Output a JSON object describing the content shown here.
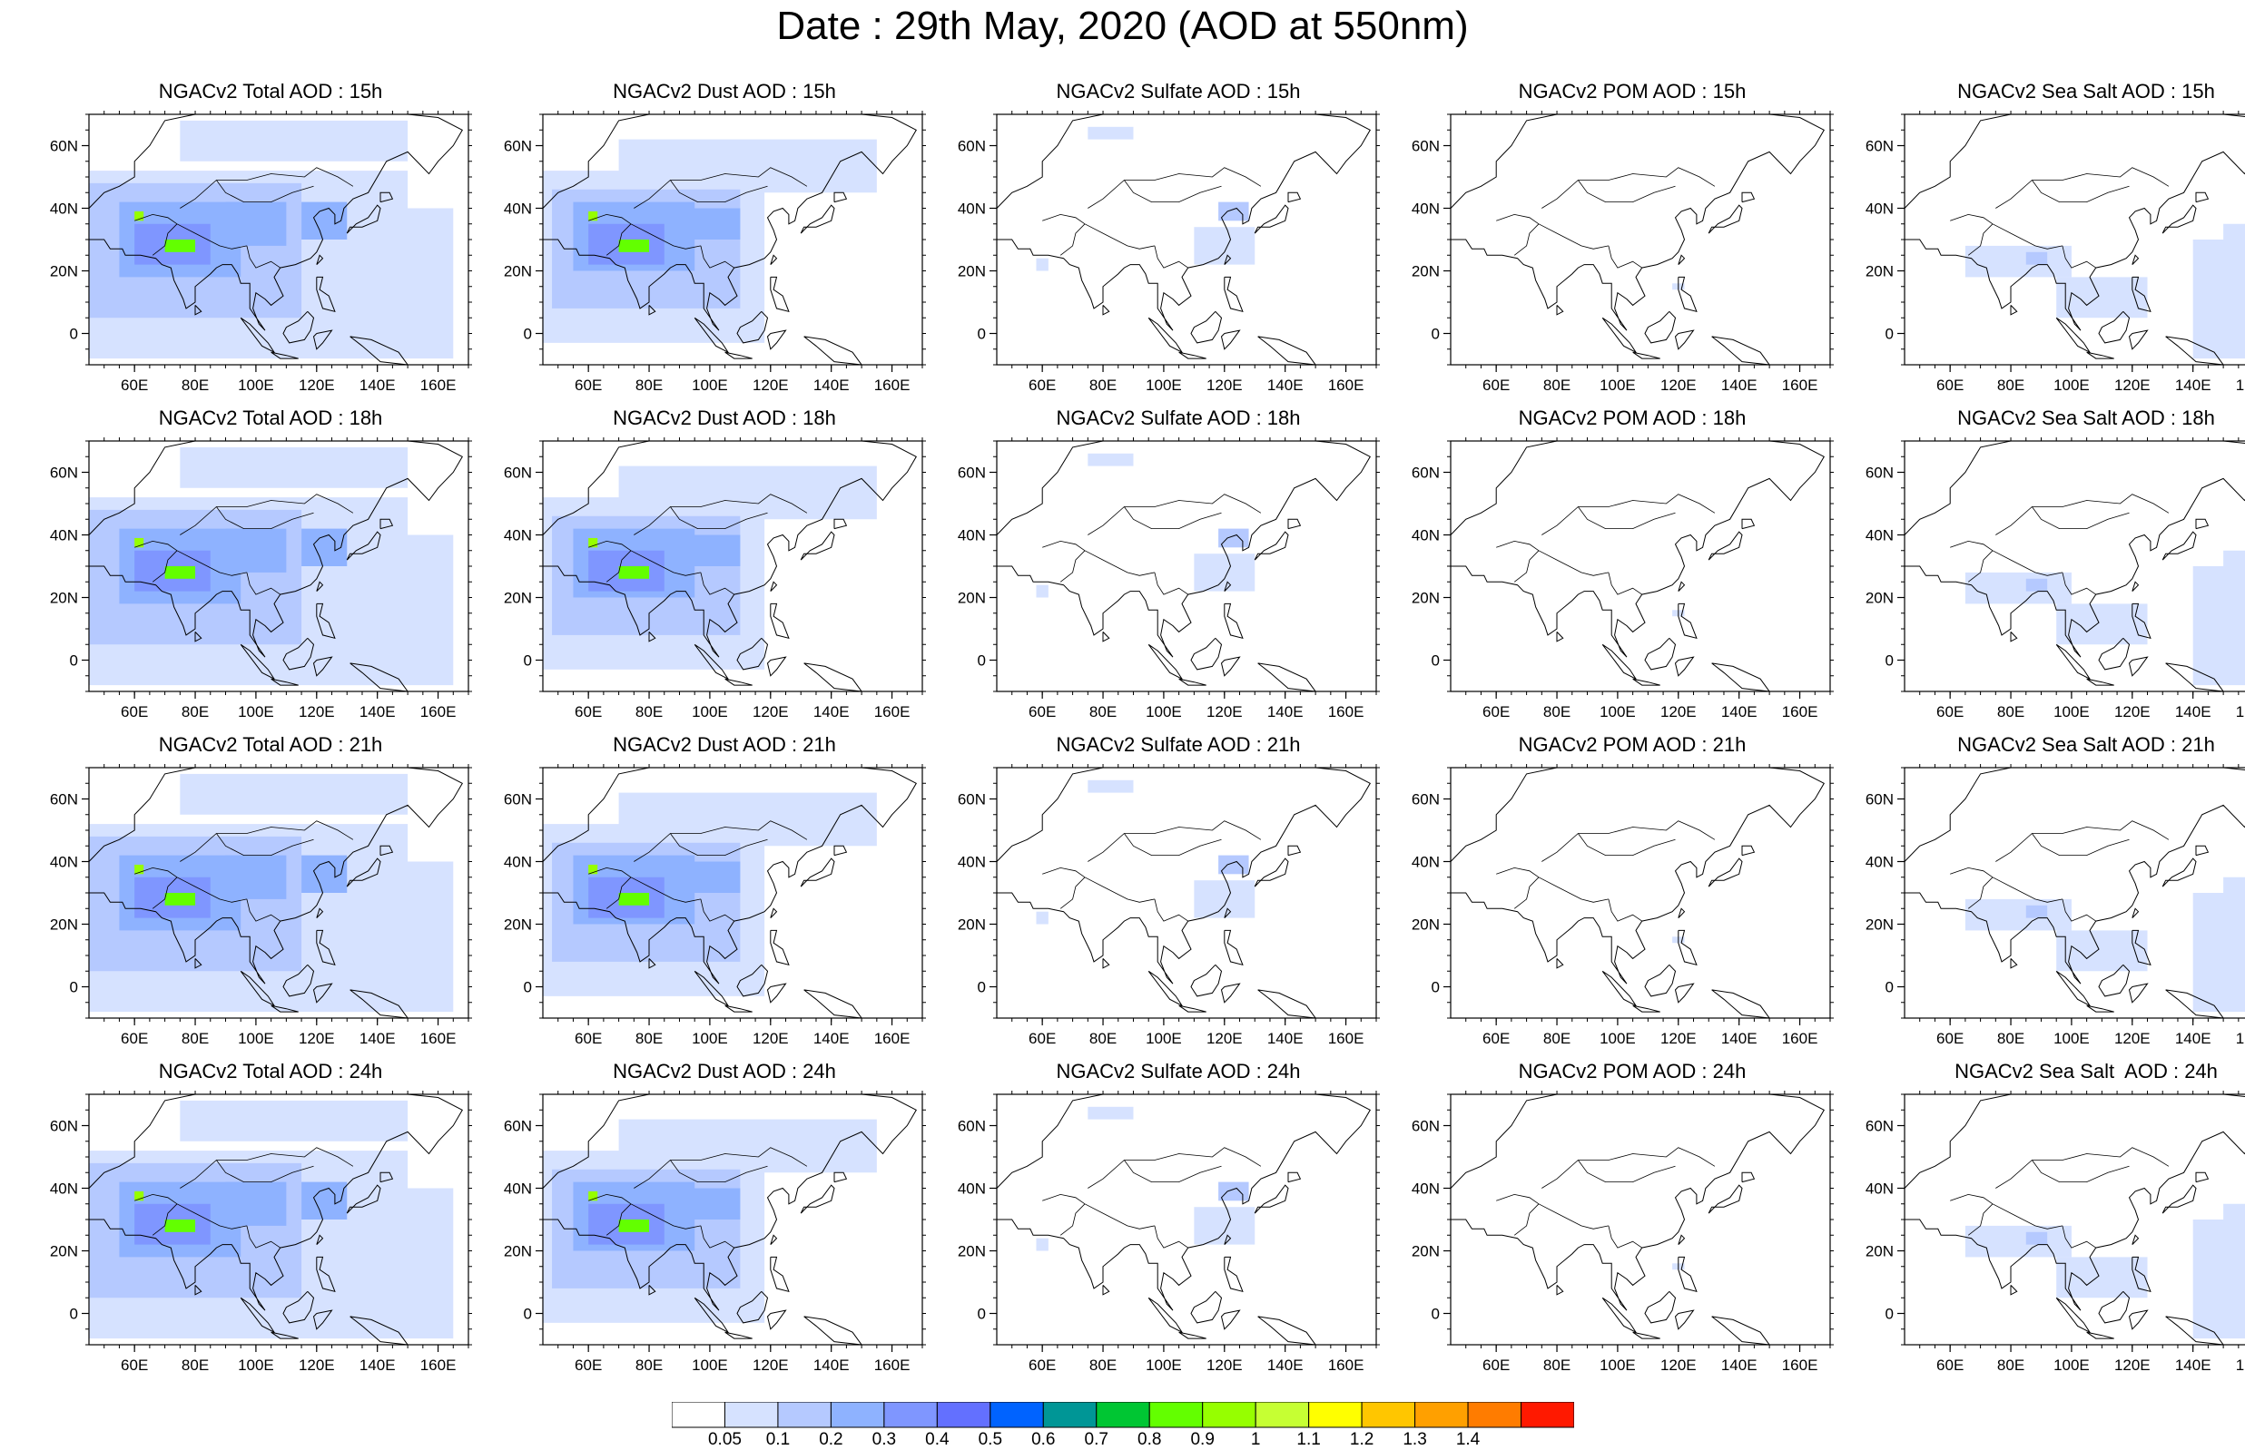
{
  "title": "Date : 29th May, 2020 (AOD at 550nm)",
  "axes": {
    "lon_ticks": [
      "60E",
      "80E",
      "100E",
      "120E",
      "140E",
      "160E"
    ],
    "lat_ticks": [
      "60N",
      "40N",
      "20N",
      "0"
    ],
    "lon_range": [
      45,
      170
    ],
    "lat_range": [
      -10,
      70
    ]
  },
  "panels": [
    {
      "title": "NGACv2 Total AOD : 15h",
      "species": "total",
      "hour": "15h"
    },
    {
      "title": "NGACv2 Dust AOD : 15h",
      "species": "dust",
      "hour": "15h"
    },
    {
      "title": "NGACv2 Sulfate AOD : 15h",
      "species": "sulfate",
      "hour": "15h"
    },
    {
      "title": "NGACv2 POM AOD : 15h",
      "species": "pom",
      "hour": "15h"
    },
    {
      "title": "NGACv2 Sea Salt AOD : 15h",
      "species": "seasalt",
      "hour": "15h"
    },
    {
      "title": "NGACv2 Total AOD : 18h",
      "species": "total",
      "hour": "18h"
    },
    {
      "title": "NGACv2 Dust AOD : 18h",
      "species": "dust",
      "hour": "18h"
    },
    {
      "title": "NGACv2 Sulfate AOD : 18h",
      "species": "sulfate",
      "hour": "18h"
    },
    {
      "title": "NGACv2 POM AOD : 18h",
      "species": "pom",
      "hour": "18h"
    },
    {
      "title": "NGACv2 Sea Salt AOD : 18h",
      "species": "seasalt",
      "hour": "18h"
    },
    {
      "title": "NGACv2 Total AOD : 21h",
      "species": "total",
      "hour": "21h"
    },
    {
      "title": "NGACv2 Dust AOD : 21h",
      "species": "dust",
      "hour": "21h"
    },
    {
      "title": "NGACv2 Sulfate AOD : 21h",
      "species": "sulfate",
      "hour": "21h"
    },
    {
      "title": "NGACv2 POM AOD : 21h",
      "species": "pom",
      "hour": "21h"
    },
    {
      "title": "NGACv2 Sea Salt AOD : 21h",
      "species": "seasalt",
      "hour": "21h"
    },
    {
      "title": "NGACv2 Total AOD : 24h",
      "species": "total",
      "hour": "24h"
    },
    {
      "title": "NGACv2 Dust AOD : 24h",
      "species": "dust",
      "hour": "24h"
    },
    {
      "title": "NGACv2 Sulfate AOD : 24h",
      "species": "sulfate",
      "hour": "24h"
    },
    {
      "title": "NGACv2 POM AOD : 24h",
      "species": "pom",
      "hour": "24h"
    },
    {
      "title": "NGACv2 Sea Salt  AOD : 24h",
      "species": "seasalt",
      "hour": "24h"
    }
  ],
  "colorbar": {
    "labels": [
      "0.05",
      "0.1",
      "0.2",
      "0.3",
      "0.4",
      "0.5",
      "0.6",
      "0.7",
      "0.8",
      "0.9",
      "1",
      "1.1",
      "1.2",
      "1.3",
      "1.4"
    ],
    "colors": [
      "#ffffff",
      "#d6e2ff",
      "#b5c9ff",
      "#8eb2ff",
      "#7f96ff",
      "#6370ff",
      "#0063ff",
      "#009696",
      "#00c633",
      "#63ff00",
      "#96ff00",
      "#c6ff33",
      "#ffff00",
      "#ffc600",
      "#ffa000",
      "#ff7c00",
      "#ff1900"
    ]
  }
}
